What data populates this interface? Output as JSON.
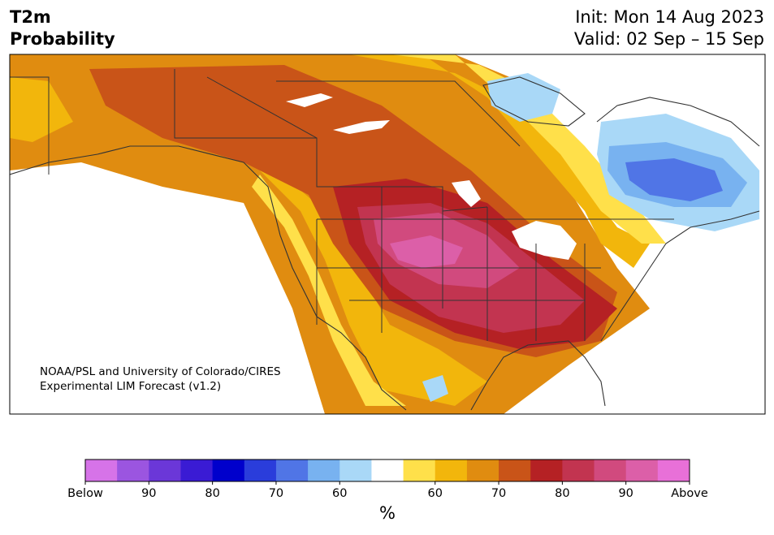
{
  "title": {
    "line1": "T2m",
    "line2": "Probability"
  },
  "forecast": {
    "init": "Init: Mon 14 Aug 2023",
    "valid": "Valid: 02 Sep – 15 Sep"
  },
  "credit": {
    "line1": "NOAA/PSL and University of Colorado/CIRES",
    "line2": "Experimental LIM Forecast (v1.2)"
  },
  "colorbar": {
    "unit": "%",
    "colors": [
      "#d673e8",
      "#9b55e0",
      "#6b37d8",
      "#3a1bd4",
      "#0000cc",
      "#2a3ddb",
      "#5075e6",
      "#78b2f0",
      "#a9d8f7",
      "#ffffff",
      "#ffe04a",
      "#f2b60c",
      "#e08c10",
      "#c95418",
      "#b52124",
      "#c23450",
      "#d14a7e",
      "#dc5fa8",
      "#e870d8"
    ],
    "labels": [
      "Below",
      "90",
      "80",
      "70",
      "60",
      "60",
      "70",
      "80",
      "90",
      "Above"
    ]
  },
  "map": {
    "ocean_color": "#ffffff",
    "border_color": "#333333"
  }
}
